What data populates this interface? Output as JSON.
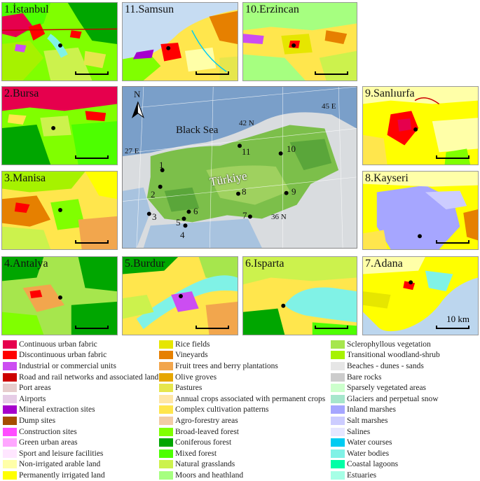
{
  "panels": [
    {
      "id": "istanbul",
      "label": "1.İstanbul"
    },
    {
      "id": "samsun",
      "label": "11.Samsun"
    },
    {
      "id": "erzincan",
      "label": "10.Erzincan"
    },
    {
      "id": "bursa",
      "label": "2.Bursa"
    },
    {
      "id": "sanliurfa",
      "label": "9.Sanlıurfa"
    },
    {
      "id": "manisa",
      "label": "3.Manisa"
    },
    {
      "id": "kayseri",
      "label": "8.Kayseri"
    },
    {
      "id": "antalya",
      "label": "4.Antalya"
    },
    {
      "id": "burdur",
      "label": "5.Burdur"
    },
    {
      "id": "isparta",
      "label": "6.Isparta"
    },
    {
      "id": "adana",
      "label": "7.Adana"
    }
  ],
  "scale_label": "10 km",
  "overview_map": {
    "north_label": "N",
    "sea_label": "Black Sea",
    "country_label": "Türkiye",
    "graticule_labels": [
      "45 E",
      "42 N",
      "27 E",
      "36 N"
    ],
    "site_numbers": [
      "1",
      "2",
      "3",
      "4",
      "5",
      "6",
      "7",
      "8",
      "9",
      "10",
      "11"
    ]
  },
  "legend": {
    "columns": [
      [
        {
          "label": "Continuous urban fabric",
          "color": "#e6004d"
        },
        {
          "label": "Discontinuous urban fabric",
          "color": "#ff0000"
        },
        {
          "label": "Industrial or commercial units",
          "color": "#cc4df2"
        },
        {
          "label": "Road and rail networks and associated land",
          "color": "#cc0000"
        },
        {
          "label": "Port areas",
          "color": "#e6cccc"
        },
        {
          "label": "Airports",
          "color": "#e6cce6"
        },
        {
          "label": "Mineral extraction sites",
          "color": "#a600cc"
        },
        {
          "label": "Dump sites",
          "color": "#a64d00"
        },
        {
          "label": "Construction sites",
          "color": "#ff4dff"
        },
        {
          "label": "Green urban areas",
          "color": "#ffa6ff"
        },
        {
          "label": "Sport and leisure facilities",
          "color": "#ffe6ff"
        },
        {
          "label": "Non-irrigated arable land",
          "color": "#ffffa8"
        },
        {
          "label": "Permanently irrigated land",
          "color": "#ffff00"
        }
      ],
      [
        {
          "label": "Rice fields",
          "color": "#e6e600"
        },
        {
          "label": "Vineyards",
          "color": "#e68000"
        },
        {
          "label": "Fruit trees and berry plantations",
          "color": "#f2a64d"
        },
        {
          "label": "Olive groves",
          "color": "#e6a600"
        },
        {
          "label": "Pastures",
          "color": "#e6e64d"
        },
        {
          "label": "Annual crops associated with permanent crops",
          "color": "#ffe6a6"
        },
        {
          "label": "Complex cultivation patterns",
          "color": "#ffe64d"
        },
        {
          "label": "Agro-forestry areas",
          "color": "#f2cca6"
        },
        {
          "label": "Broad-leaved forest",
          "color": "#80ff00"
        },
        {
          "label": "Coniferous forest",
          "color": "#00a600"
        },
        {
          "label": "Mixed forest",
          "color": "#4dff00"
        },
        {
          "label": "Natural grasslands",
          "color": "#ccf24d"
        },
        {
          "label": "Moors and heathland",
          "color": "#a6ff80"
        }
      ],
      [
        {
          "label": "Sclerophyllous vegetation",
          "color": "#a6e64d"
        },
        {
          "label": "Transitional woodland-shrub",
          "color": "#a6f200"
        },
        {
          "label": "Beaches - dunes - sands",
          "color": "#e6e6e6"
        },
        {
          "label": "Bare rocks",
          "color": "#cccccc"
        },
        {
          "label": "Sparsely vegetated areas",
          "color": "#ccffcc"
        },
        {
          "label": "Glaciers and perpetual snow",
          "color": "#a6e6cc"
        },
        {
          "label": "Inland marshes",
          "color": "#a6a6ff"
        },
        {
          "label": "Salt marshes",
          "color": "#ccccff"
        },
        {
          "label": "Salines",
          "color": "#e6e6ff"
        },
        {
          "label": "Water courses",
          "color": "#00ccf2"
        },
        {
          "label": "Water bodies",
          "color": "#80f2e6"
        },
        {
          "label": "Coastal lagoons",
          "color": "#00ffa6"
        },
        {
          "label": "Estuaries",
          "color": "#a6ffe6"
        }
      ]
    ]
  }
}
